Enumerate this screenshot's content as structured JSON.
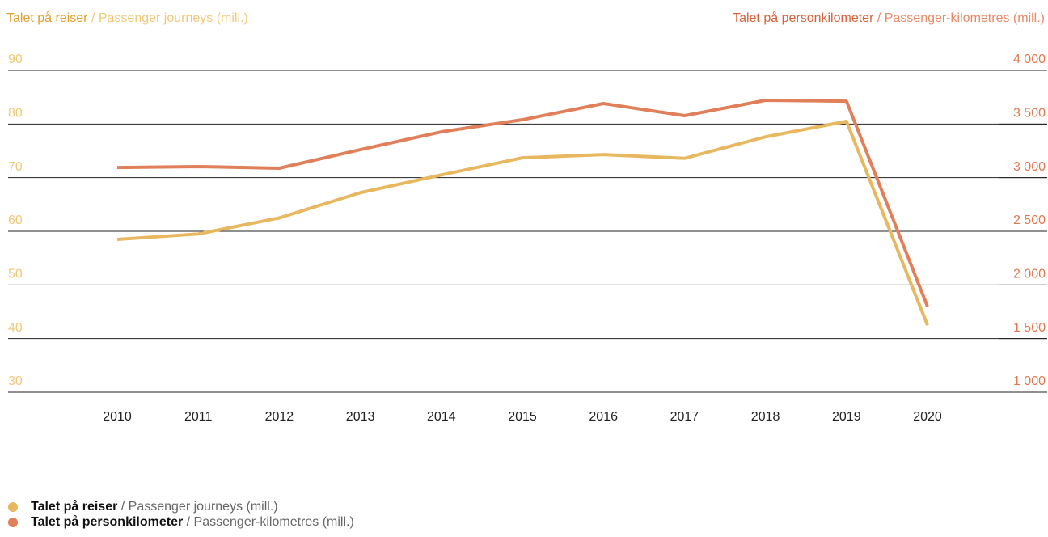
{
  "chart_data": {
    "type": "line",
    "ylabel": {
      "main": "Talet på reiser",
      "sub": "/ Passenger journeys (mill.)"
    },
    "y2label": {
      "main": "Talet på personkilometer",
      "sub": "/ Passenger-kilometres (mill.)"
    },
    "categories": [
      "2010",
      "2011",
      "2012",
      "2013",
      "2014",
      "2015",
      "2016",
      "2017",
      "2018",
      "2019",
      "2020"
    ],
    "ylim": [
      30,
      90
    ],
    "yticks": [
      30,
      40,
      50,
      60,
      70,
      80,
      90
    ],
    "y2lim": [
      1000,
      4000
    ],
    "y2ticks": [
      {
        "value": 1000,
        "label": "1 000"
      },
      {
        "value": 1500,
        "label": "1 500"
      },
      {
        "value": 2000,
        "label": "2 000"
      },
      {
        "value": 2500,
        "label": "2 500"
      },
      {
        "value": 3000,
        "label": "3 000"
      },
      {
        "value": 3500,
        "label": "3 500"
      },
      {
        "value": 4000,
        "label": "4 000"
      }
    ],
    "grid": true,
    "series": [
      {
        "name": "Talet på reiser",
        "name_sub": "/ Passenger journeys (mill.)",
        "color": "#e8b860",
        "axis": "y",
        "values": [
          58.5,
          59.5,
          62.5,
          67.2,
          70.5,
          73.7,
          74.3,
          73.6,
          77.6,
          80.5,
          42.5
        ]
      },
      {
        "name": "Talet på personkilometer",
        "name_sub": "/ Passenger-kilometres (mill.)",
        "color": "#e07f5a",
        "axis": "y2",
        "values": [
          3095,
          3103,
          3088,
          3261,
          3427,
          3540,
          3691,
          3578,
          3721,
          3713,
          1799
        ]
      }
    ]
  }
}
